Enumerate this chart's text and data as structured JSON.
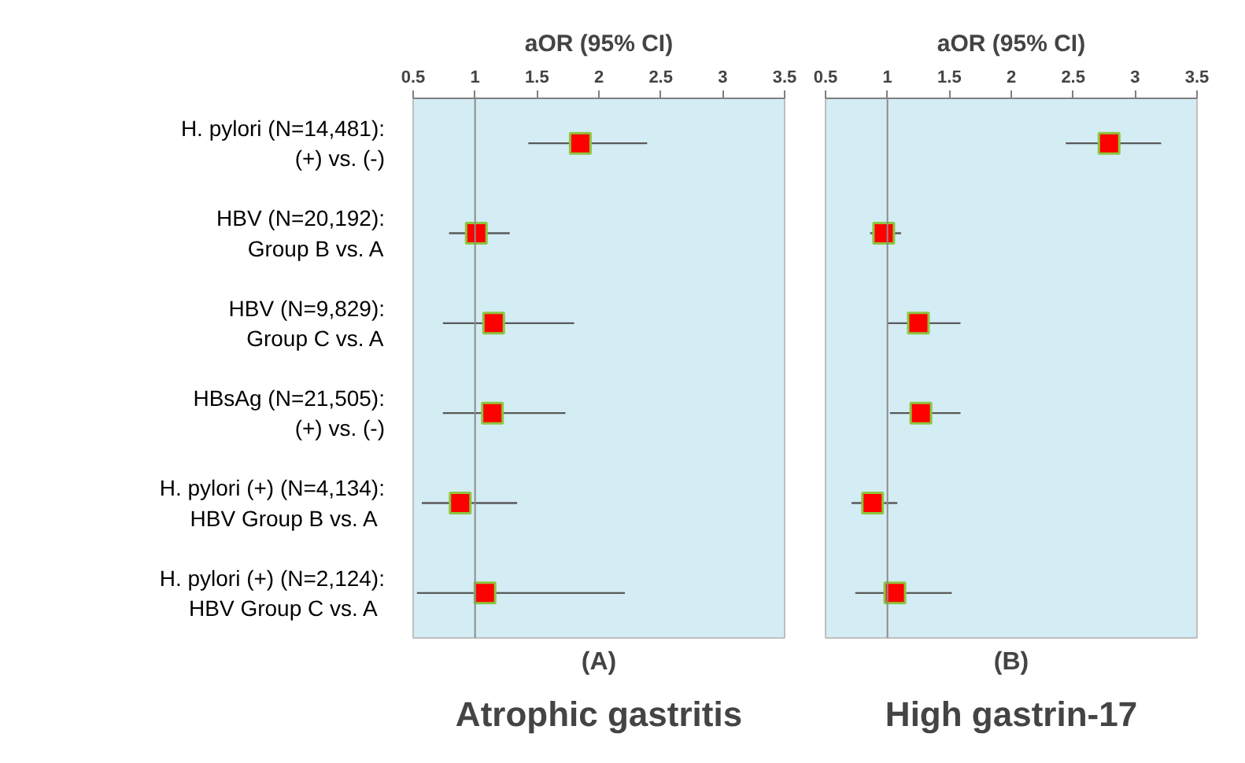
{
  "chart_data": [
    {
      "type": "scatter",
      "orientation": "horizontal",
      "title": "Atrophic gastritis",
      "subtitle": "(A)",
      "xlabel": "aOR (95% CI)",
      "categories": [
        "H. pylori (N=14,481):\n(+) vs. (-)",
        "HBV (N=20,192):\nGroup B vs. A",
        "HBV (N=9,829):\nGroup C vs. A",
        "HBsAg (N=21,505):\n(+) vs. (-)",
        "H. pylori (+) (N=4,134):\nHBV  Group B vs. A",
        "H. pylori (+) (N=2,124):\nHBV  Group C vs. A"
      ],
      "values": [
        1.85,
        1.01,
        1.15,
        1.14,
        0.88,
        1.08
      ],
      "errors": [
        [
          1.43,
          2.39
        ],
        [
          0.79,
          1.28
        ],
        [
          0.74,
          1.8
        ],
        [
          0.74,
          1.73
        ],
        [
          0.57,
          1.34
        ],
        [
          0.53,
          2.21
        ]
      ],
      "color": "#ff0000",
      "marker": "square",
      "xlim": [
        0.5,
        3.5
      ],
      "xticks": [
        0.5,
        1,
        1.5,
        2,
        2.5,
        3,
        3.5
      ],
      "ref_lines": [
        {
          "axis": "x",
          "value": 1
        }
      ],
      "grid": false
    },
    {
      "type": "scatter",
      "orientation": "horizontal",
      "title": "High gastrin-17",
      "subtitle": "(B)",
      "xlabel": "aOR (95% CI)",
      "values": [
        2.79,
        0.97,
        1.25,
        1.27,
        0.88,
        1.06
      ],
      "errors": [
        [
          2.44,
          3.21
        ],
        [
          0.86,
          1.11
        ],
        [
          1.0,
          1.59
        ],
        [
          1.02,
          1.59
        ],
        [
          0.71,
          1.08
        ],
        [
          0.74,
          1.52
        ]
      ],
      "color": "#ff0000",
      "marker": "square",
      "xlim": [
        0.5,
        3.5
      ],
      "xticks": [
        0.5,
        1,
        1.5,
        2,
        2.5,
        3,
        3.5
      ],
      "ref_lines": [
        {
          "axis": "x",
          "value": 1
        }
      ],
      "grid": false,
      "tick_labels": "x",
      "categories": [
        null,
        null,
        null,
        null,
        null,
        null
      ]
    }
  ]
}
